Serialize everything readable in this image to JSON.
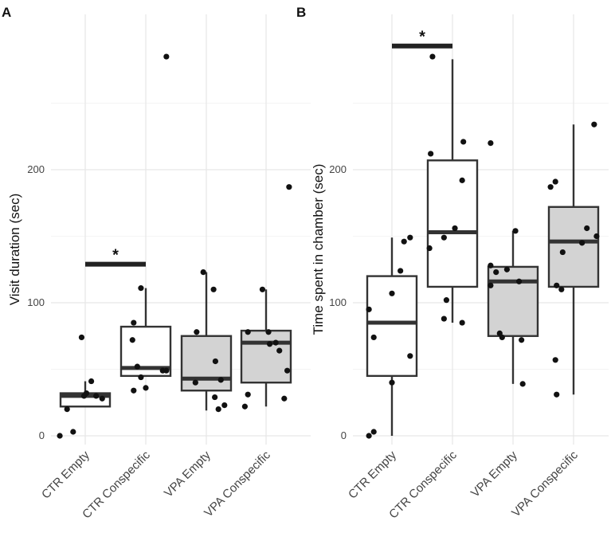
{
  "chart_data": [
    {
      "type": "boxplot",
      "panel_label": "A",
      "ylabel": "Visit duration (sec)",
      "ylim": [
        -8,
        295
      ],
      "yticks": [
        0,
        100,
        200
      ],
      "categories": [
        "CTR Empty",
        "CTR Conspecific",
        "VPA Empty",
        "VPA Conspecific"
      ],
      "box_fill": [
        "#ffffff",
        "#ffffff",
        "#d3d3d3",
        "#d3d3d3"
      ],
      "boxes": [
        {
          "q1": 22,
          "median": 30,
          "q3": 32,
          "whisker_low": 22,
          "whisker_high": 41
        },
        {
          "q1": 45,
          "median": 51,
          "q3": 82,
          "whisker_low": 45,
          "whisker_high": 111
        },
        {
          "q1": 34,
          "median": 43,
          "q3": 75,
          "whisker_low": 19,
          "whisker_high": 123
        },
        {
          "q1": 40,
          "median": 70,
          "q3": 79,
          "whisker_low": 22,
          "whisker_high": 110
        }
      ],
      "points": [
        [
          [
            -0.42,
            0
          ],
          [
            -0.3,
            20
          ],
          [
            -0.2,
            3
          ],
          [
            -0.06,
            74
          ],
          [
            -0.02,
            30
          ],
          [
            0.02,
            32
          ],
          [
            0.1,
            41
          ],
          [
            0.18,
            30
          ],
          [
            0.28,
            28
          ]
        ],
        [
          [
            -0.22,
            72
          ],
          [
            -0.2,
            85
          ],
          [
            -0.2,
            34
          ],
          [
            -0.14,
            52
          ],
          [
            -0.08,
            44
          ],
          [
            -0.08,
            111
          ],
          [
            0.0,
            36
          ],
          [
            0.28,
            49
          ],
          [
            0.34,
            49
          ],
          [
            0.34,
            285
          ]
        ],
        [
          [
            -0.18,
            40
          ],
          [
            -0.16,
            78
          ],
          [
            -0.05,
            123
          ],
          [
            0.12,
            110
          ],
          [
            0.14,
            29
          ],
          [
            0.15,
            56
          ],
          [
            0.2,
            20
          ],
          [
            0.24,
            42
          ],
          [
            0.3,
            23
          ]
        ],
        [
          [
            -0.35,
            22
          ],
          [
            -0.3,
            31
          ],
          [
            -0.3,
            78
          ],
          [
            -0.06,
            110
          ],
          [
            0.04,
            78
          ],
          [
            0.06,
            69
          ],
          [
            0.16,
            70
          ],
          [
            0.22,
            64
          ],
          [
            0.3,
            28
          ],
          [
            0.35,
            49
          ],
          [
            0.38,
            187
          ]
        ]
      ],
      "significance": {
        "from": "CTR Empty",
        "to": "CTR Conspecific",
        "y": 129,
        "label": "*"
      }
    },
    {
      "type": "boxplot",
      "panel_label": "B",
      "ylabel": "Time spent in chamber (sec)",
      "ylim": [
        -8,
        295
      ],
      "yticks": [
        0,
        100,
        200
      ],
      "categories": [
        "CTR Empty",
        "CTR Conspecific",
        "VPA Empty",
        "VPA Conspecific"
      ],
      "box_fill": [
        "#ffffff",
        "#ffffff",
        "#d3d3d3",
        "#d3d3d3"
      ],
      "boxes": [
        {
          "q1": 45,
          "median": 85,
          "q3": 120,
          "whisker_low": 0,
          "whisker_high": 149
        },
        {
          "q1": 112,
          "median": 153,
          "q3": 207,
          "whisker_low": 85,
          "whisker_high": 283
        },
        {
          "q1": 75,
          "median": 116,
          "q3": 127,
          "whisker_low": 39,
          "whisker_high": 154
        },
        {
          "q1": 112,
          "median": 146,
          "q3": 172,
          "whisker_low": 31,
          "whisker_high": 234
        }
      ],
      "points": [
        [
          [
            -0.38,
            0
          ],
          [
            -0.3,
            3
          ],
          [
            -0.38,
            95
          ],
          [
            -0.3,
            74
          ],
          [
            0.0,
            40
          ],
          [
            0.0,
            107
          ],
          [
            0.14,
            124
          ],
          [
            0.2,
            146
          ],
          [
            0.3,
            149
          ],
          [
            0.3,
            60
          ]
        ],
        [
          [
            -0.38,
            141
          ],
          [
            -0.36,
            212
          ],
          [
            -0.33,
            285
          ],
          [
            -0.14,
            88
          ],
          [
            -0.1,
            102
          ],
          [
            -0.14,
            149
          ],
          [
            0.04,
            156
          ],
          [
            0.16,
            85
          ],
          [
            0.16,
            192
          ],
          [
            0.18,
            221
          ]
        ],
        [
          [
            -0.37,
            128
          ],
          [
            -0.37,
            113
          ],
          [
            -0.37,
            220
          ],
          [
            -0.28,
            123
          ],
          [
            -0.22,
            77
          ],
          [
            -0.18,
            74
          ],
          [
            -0.1,
            125
          ],
          [
            0.04,
            154
          ],
          [
            0.1,
            116
          ],
          [
            0.14,
            72
          ],
          [
            0.16,
            39
          ]
        ],
        [
          [
            -0.38,
            187
          ],
          [
            -0.3,
            191
          ],
          [
            -0.28,
            113
          ],
          [
            -0.3,
            57
          ],
          [
            -0.28,
            31
          ],
          [
            -0.2,
            110
          ],
          [
            -0.18,
            138
          ],
          [
            0.14,
            145
          ],
          [
            0.22,
            156
          ],
          [
            0.34,
            234
          ],
          [
            0.38,
            150
          ]
        ]
      ],
      "significance": {
        "from": "CTR Empty",
        "to": "CTR Conspecific",
        "y": 293,
        "label": "*"
      }
    }
  ]
}
